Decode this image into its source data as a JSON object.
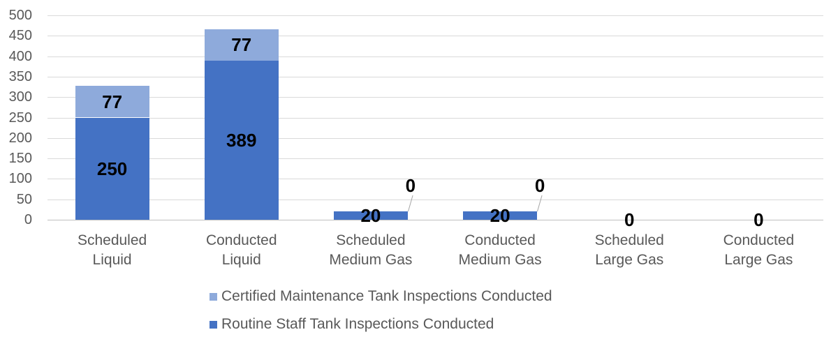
{
  "chart_data": {
    "type": "bar",
    "stacked": true,
    "title": "",
    "xlabel": "",
    "ylabel": "",
    "categories": [
      "Scheduled Liquid",
      "Conducted Liquid",
      "Scheduled Medium Gas",
      "Conducted Medium Gas",
      "Scheduled Large Gas",
      "Conducted Large Gas"
    ],
    "category_lines": [
      [
        "Scheduled",
        "Liquid"
      ],
      [
        "Conducted",
        "Liquid"
      ],
      [
        "Scheduled",
        "Medium Gas"
      ],
      [
        "Conducted",
        "Medium Gas"
      ],
      [
        "Scheduled",
        "Large Gas"
      ],
      [
        "Conducted",
        "Large Gas"
      ]
    ],
    "series": [
      {
        "name": "Routine Staff Tank Inspections Conducted",
        "color": "#4472C4",
        "values": [
          250,
          389,
          20,
          20,
          0,
          0
        ]
      },
      {
        "name": "Certified Maintenance Tank Inspections Conducted",
        "color": "#8EAADB",
        "values": [
          77,
          77,
          0,
          0,
          0,
          0
        ]
      }
    ],
    "totals": [
      327,
      466,
      20,
      20,
      0,
      0
    ],
    "ylim": [
      0,
      500
    ],
    "yticks": [
      0,
      50,
      100,
      150,
      200,
      250,
      300,
      350,
      400,
      450,
      500
    ],
    "grid": true,
    "legend_position": "bottom-left",
    "legend": [
      {
        "label": "Certified Maintenance Tank Inspections Conducted",
        "color": "#8EAADB"
      },
      {
        "label": "Routine Staff Tank Inspections Conducted",
        "color": "#4472C4"
      }
    ]
  },
  "colors": {
    "grid": "#D9D9D9",
    "axis": "#BFBFBF",
    "tick_text": "#595959",
    "category_text": "#595959",
    "legend_text": "#595959",
    "data_label": "#000000",
    "leader_line": "#A6A6A6",
    "background": "#FFFFFF"
  }
}
